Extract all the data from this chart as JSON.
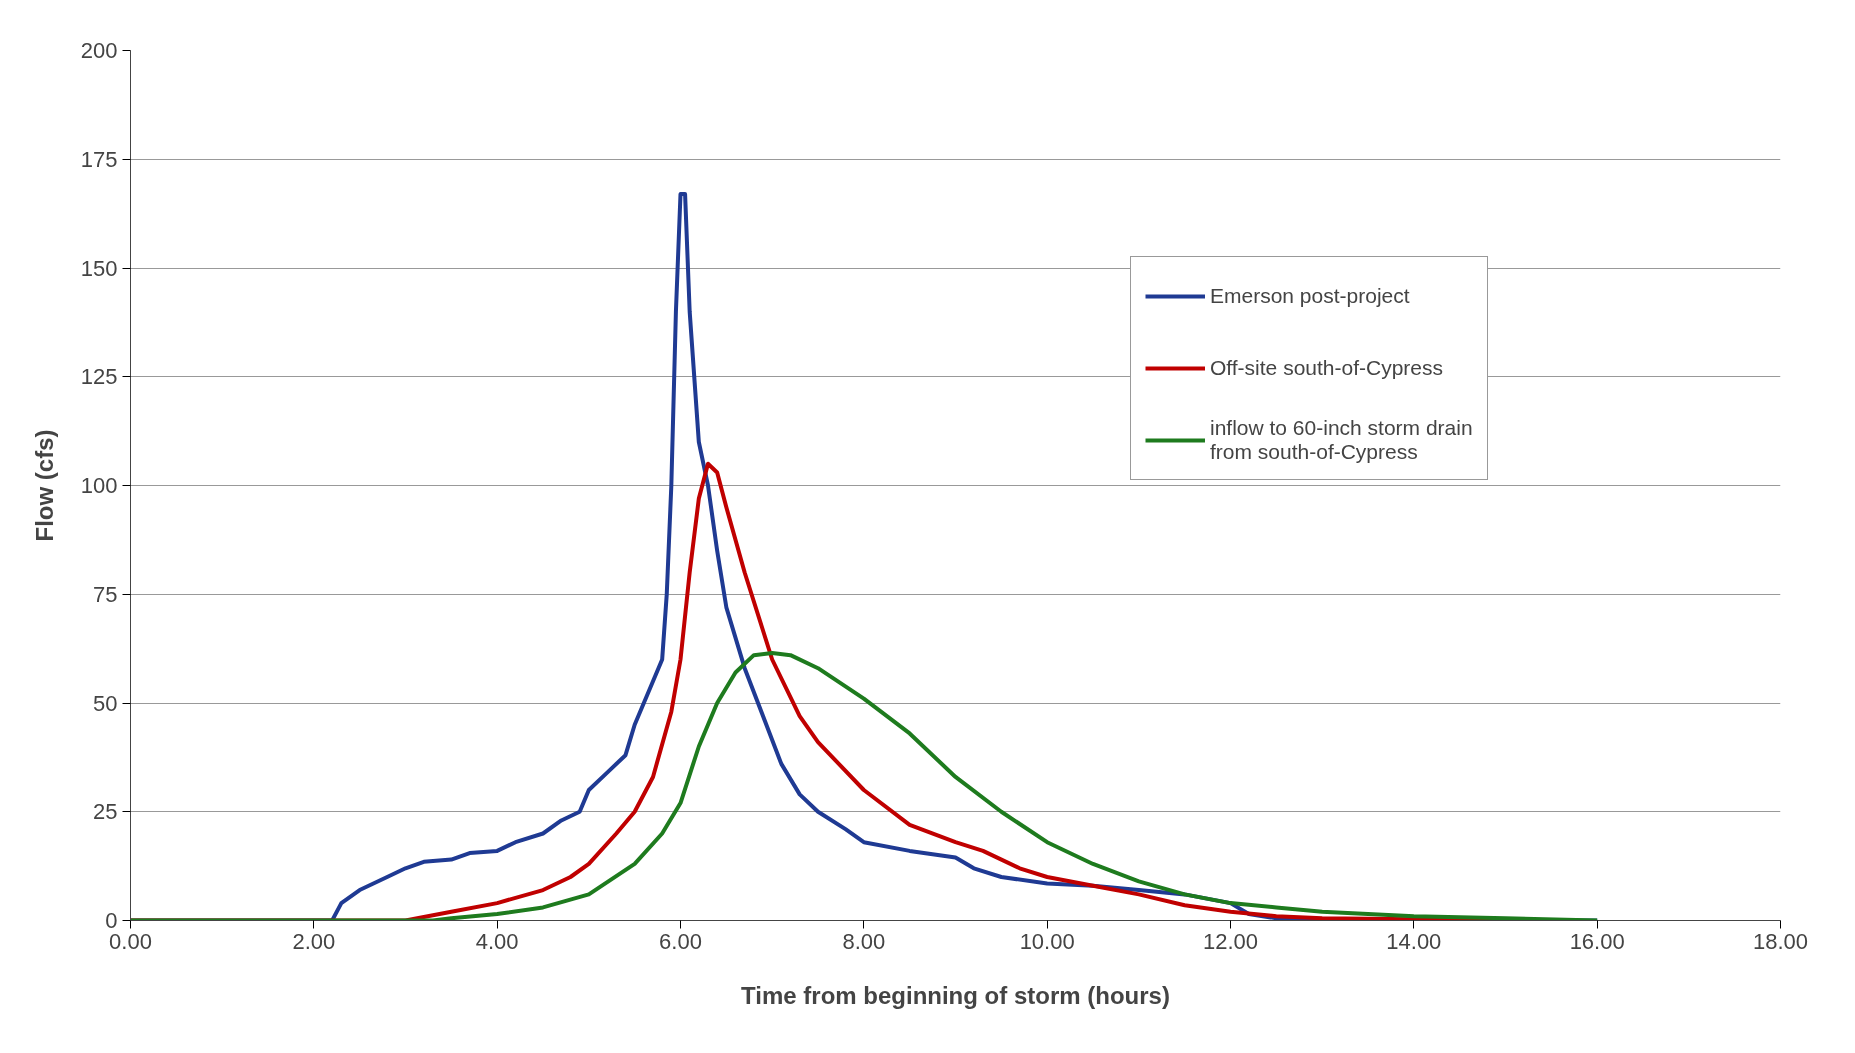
{
  "chart_data": {
    "type": "line",
    "xlabel": "Time from beginning of storm (hours)",
    "ylabel": "Flow (cfs)",
    "xlim": [
      0,
      18
    ],
    "ylim": [
      0,
      200
    ],
    "xticks": [
      {
        "value": 0,
        "label": "0.00"
      },
      {
        "value": 2,
        "label": "2.00"
      },
      {
        "value": 4,
        "label": "4.00"
      },
      {
        "value": 6,
        "label": "6.00"
      },
      {
        "value": 8,
        "label": "8.00"
      },
      {
        "value": 10,
        "label": "10.00"
      },
      {
        "value": 12,
        "label": "12.00"
      },
      {
        "value": 14,
        "label": "14.00"
      },
      {
        "value": 16,
        "label": "16.00"
      },
      {
        "value": 18,
        "label": "18.00"
      }
    ],
    "yticks": [
      0,
      25,
      50,
      75,
      100,
      125,
      150,
      175,
      200
    ],
    "grid": "y",
    "legend": "right",
    "marker": "none",
    "line_style": "solid",
    "series": [
      {
        "name": "Emerson post-project",
        "color": "#1f3a93",
        "x": [
          0,
          2.2,
          2.3,
          2.5,
          2.8,
          3.0,
          3.2,
          3.5,
          3.7,
          4.0,
          4.2,
          4.5,
          4.7,
          4.9,
          5.0,
          5.2,
          5.4,
          5.5,
          5.6,
          5.7,
          5.8,
          5.85,
          5.9,
          5.95,
          6.0,
          6.05,
          6.1,
          6.2,
          6.3,
          6.4,
          6.5,
          6.7,
          6.9,
          7.1,
          7.3,
          7.5,
          7.8,
          8.0,
          8.5,
          9.0,
          9.2,
          9.5,
          10.0,
          10.5,
          11.0,
          11.5,
          12.0,
          12.2,
          12.5,
          13.0,
          16.0
        ],
        "values": [
          0,
          0,
          4,
          7,
          10,
          12,
          13.5,
          14,
          15.5,
          16,
          18,
          20,
          23,
          25,
          30,
          34,
          38,
          45,
          50,
          55,
          60,
          75,
          100,
          140,
          167,
          167,
          140,
          110,
          100,
          85,
          72,
          58,
          47,
          36,
          29,
          25,
          21,
          18,
          16,
          14.5,
          12,
          10,
          8.5,
          8,
          7,
          6,
          4,
          1.5,
          0.5,
          0,
          0
        ]
      },
      {
        "name": "Off-site south-of-Cypress",
        "color": "#c00000",
        "x": [
          0,
          3.0,
          3.5,
          4.0,
          4.5,
          4.8,
          5.0,
          5.3,
          5.5,
          5.7,
          5.9,
          6.0,
          6.1,
          6.2,
          6.3,
          6.4,
          6.5,
          6.7,
          7.0,
          7.3,
          7.5,
          8.0,
          8.5,
          9.0,
          9.3,
          9.7,
          10.0,
          10.5,
          11.0,
          11.5,
          12.0,
          12.5,
          13.0,
          14.0,
          15.0,
          15.2
        ],
        "values": [
          0,
          0,
          2,
          4,
          7,
          10,
          13,
          20,
          25,
          33,
          48,
          60,
          80,
          97,
          105,
          103,
          95,
          80,
          60,
          47,
          41,
          30,
          22,
          18,
          16,
          12,
          10,
          8,
          6,
          3.5,
          2,
          1,
          0.5,
          0.3,
          0.1,
          0
        ]
      },
      {
        "name": "inflow to 60-inch storm drain\nfrom south-of-Cypress",
        "color": "#1e7b1e",
        "x": [
          0,
          3.3,
          3.5,
          4.0,
          4.5,
          5.0,
          5.5,
          5.8,
          6.0,
          6.2,
          6.4,
          6.6,
          6.8,
          7.0,
          7.2,
          7.5,
          8.0,
          8.5,
          9.0,
          9.5,
          10.0,
          10.5,
          11.0,
          11.5,
          12.0,
          12.5,
          13.0,
          14.0,
          15.0,
          16.0
        ],
        "values": [
          0,
          0,
          0.5,
          1.5,
          3,
          6,
          13,
          20,
          27,
          40,
          50,
          57,
          61,
          61.5,
          61,
          58,
          51,
          43,
          33,
          25,
          18,
          13,
          9,
          6,
          4,
          3,
          2,
          1,
          0.5,
          0
        ]
      }
    ]
  }
}
